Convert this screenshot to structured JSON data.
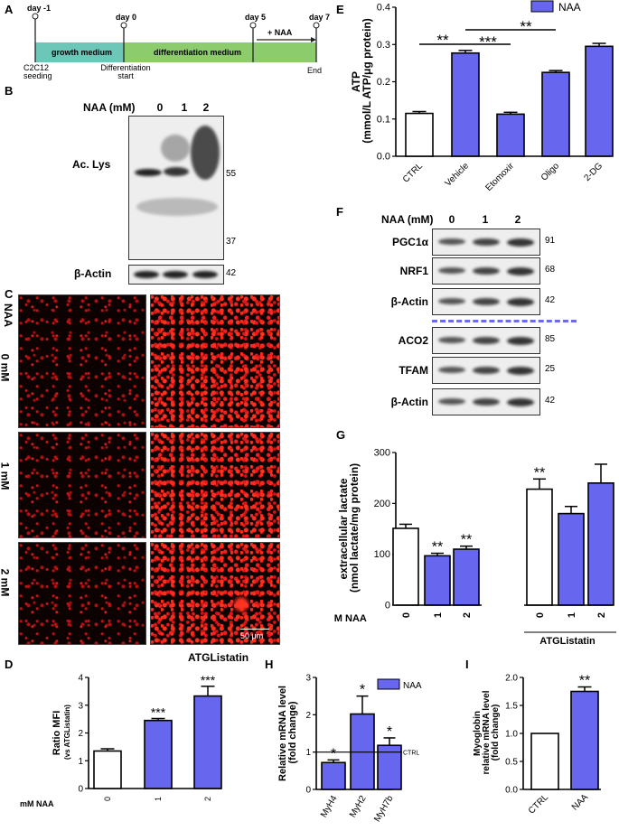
{
  "panel_labels": {
    "a": "A",
    "b": "B",
    "c": "C",
    "d": "D",
    "e": "E",
    "f": "F",
    "g": "G",
    "h": "H",
    "i": "I"
  },
  "timeline": {
    "days": [
      "day -1",
      "day 0",
      "day 5",
      "day 7"
    ],
    "growth": "growth medium",
    "diff": "differentiation medium",
    "naa": "+ NAA",
    "seeding": [
      "C2C12",
      "seeding"
    ],
    "start": [
      "Differentiation",
      "start"
    ],
    "end": "End"
  },
  "blot_b": {
    "header": "NAA (mM)",
    "lanes": [
      "0",
      "1",
      "2"
    ],
    "label1": "Ac. Lys",
    "label2": "β-Actin",
    "mw": [
      "55",
      "37",
      "42"
    ]
  },
  "micro": {
    "side": "NAA",
    "rows": [
      "0 mM",
      "1 mM",
      "2 mM"
    ],
    "condition": "ATGListatin",
    "scale": "50 μm"
  },
  "blot_f": {
    "header": "NAA (mM)",
    "lanes": [
      "0",
      "1",
      "2"
    ],
    "rows": [
      {
        "label": "PGC1α",
        "mw": "91"
      },
      {
        "label": "NRF1",
        "mw": "68"
      },
      {
        "label": "β-Actin",
        "mw": "42"
      },
      {
        "label": "ACO2",
        "mw": "85"
      },
      {
        "label": "TFAM",
        "mw": "25"
      },
      {
        "label": "β-Actin",
        "mw": "42"
      }
    ]
  },
  "colors": {
    "naa": "#6666ee",
    "ctrl": "#ffffff"
  },
  "chart_data": [
    {
      "id": "D",
      "type": "bar",
      "categories": [
        "0",
        "1",
        "2"
      ],
      "values": [
        1.35,
        2.45,
        3.33
      ],
      "errors": [
        0.08,
        0.07,
        0.35
      ],
      "fills": [
        "ctrl",
        "naa",
        "naa"
      ],
      "ylabel": [
        "Ratio MFI",
        "(vs ATGListatin)"
      ],
      "ylim": [
        0,
        4
      ],
      "yticks": [
        "0",
        "1",
        "2",
        "3",
        "4"
      ],
      "xprefix": "mM  NAA",
      "stars": [
        "",
        "***",
        "***"
      ]
    },
    {
      "id": "E",
      "type": "bar",
      "categories": [
        "CTRL",
        "Vehicle",
        "Etomoxir",
        "Oligo",
        "2-DG"
      ],
      "values": [
        0.115,
        0.277,
        0.113,
        0.225,
        0.295
      ],
      "errors": [
        0.005,
        0.007,
        0.005,
        0.005,
        0.008
      ],
      "fills": [
        "ctrl",
        "naa",
        "naa",
        "naa",
        "naa"
      ],
      "ylabel": [
        "ATP",
        "(mmol/L ATP/μg protein)"
      ],
      "ylim": [
        0,
        0.4
      ],
      "yticks": [
        "0.0",
        "0.1",
        "0.2",
        "0.3",
        "0.4"
      ],
      "legend": "NAA",
      "sig": [
        "**",
        "***",
        "**"
      ]
    },
    {
      "id": "G",
      "type": "bar",
      "categories": [
        "0",
        "1",
        "2",
        "0",
        "1",
        "2"
      ],
      "values": [
        151,
        97,
        110,
        228,
        180,
        240
      ],
      "errors": [
        8,
        5,
        6,
        20,
        14,
        37
      ],
      "fills": [
        "ctrl",
        "naa",
        "naa",
        "ctrl",
        "naa",
        "naa"
      ],
      "ylabel": [
        "extracellular lactate",
        "(nmol lactate/mg protein)"
      ],
      "ylim": [
        0,
        300
      ],
      "yticks": [
        "0",
        "100",
        "200",
        "300"
      ],
      "xprefix": "mM  NAA",
      "group_label": "ATGListatin",
      "stars": [
        "",
        "**",
        "**",
        "**",
        "",
        ""
      ]
    },
    {
      "id": "H",
      "type": "bar",
      "categories": [
        "MyH4",
        "MyH2",
        "MyH7b"
      ],
      "values": [
        0.72,
        2.02,
        1.18
      ],
      "errors": [
        0.07,
        0.48,
        0.2
      ],
      "fills": [
        "naa",
        "naa",
        "naa"
      ],
      "ylabel": [
        "Relative mRNA level",
        "(fold change)"
      ],
      "ylim": [
        0,
        3
      ],
      "yticks": [
        "0",
        "1",
        "2",
        "3"
      ],
      "legend": "NAA",
      "refline": "CTRL",
      "stars": [
        "*",
        "*",
        "*"
      ]
    },
    {
      "id": "I",
      "type": "bar",
      "categories": [
        "CTRL",
        "NAA"
      ],
      "values": [
        1.0,
        1.75
      ],
      "errors": [
        0,
        0.08
      ],
      "fills": [
        "ctrl",
        "naa"
      ],
      "ylabel": [
        "Myoglobin",
        "relative mRNA level",
        "(fold change)"
      ],
      "ylim": [
        0,
        2
      ],
      "yticks": [
        "0.0",
        "0.5",
        "1.0",
        "1.5",
        "2.0"
      ],
      "stars": [
        "",
        "**"
      ]
    }
  ]
}
